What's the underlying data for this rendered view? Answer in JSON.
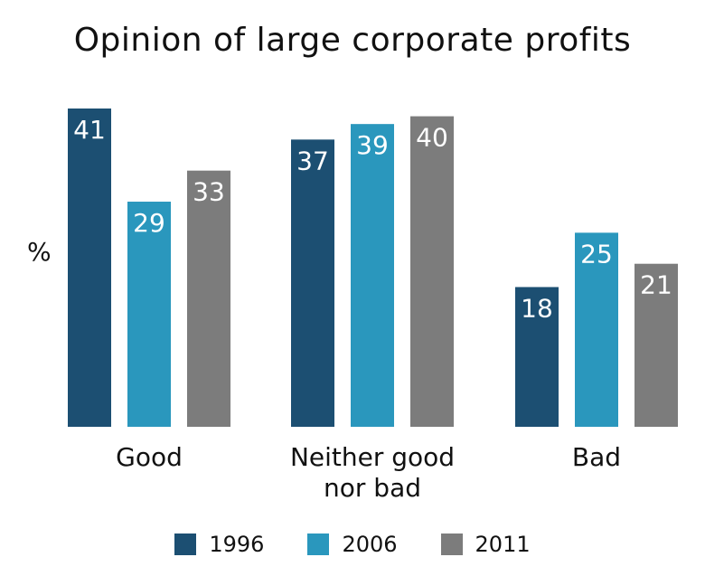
{
  "chart_data": {
    "type": "bar",
    "title": "Opinion of large corporate profits",
    "ylabel": "%",
    "categories": [
      [
        "Good"
      ],
      [
        "Neither good",
        "nor bad"
      ],
      [
        "Bad"
      ]
    ],
    "series": [
      {
        "name": "1996",
        "color": "#1c4f72",
        "values": [
          41,
          37,
          18
        ]
      },
      {
        "name": "2006",
        "color": "#2a97bd",
        "values": [
          29,
          39,
          25
        ]
      },
      {
        "name": "2011",
        "color": "#7c7c7c",
        "values": [
          33,
          40,
          21
        ]
      }
    ],
    "ylim": [
      0,
      41
    ],
    "grid": false,
    "legend_position": "bottom"
  }
}
